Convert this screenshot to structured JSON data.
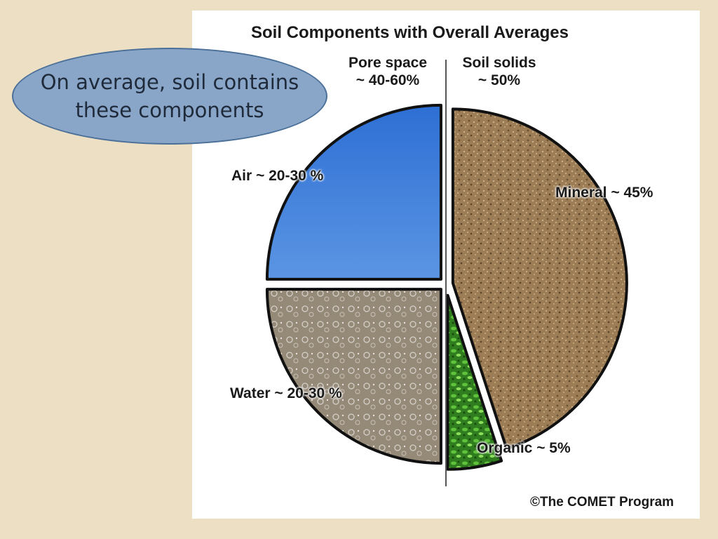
{
  "callout": {
    "text": "On average, soil contains these components"
  },
  "chart_data": {
    "type": "pie",
    "title": "Soil Components with Overall Averages",
    "groups": [
      {
        "name": "Pore space",
        "label": "~ 40-60%"
      },
      {
        "name": "Soil solids",
        "label": "~ 50%"
      }
    ],
    "slices": [
      {
        "name": "Air",
        "label": "Air ~ 20-30 %",
        "value": 25,
        "group": "Pore space",
        "color": "#3b7ad8"
      },
      {
        "name": "Water",
        "label": "Water ~ 20-30 %",
        "value": 25,
        "group": "Pore space",
        "color": "#9b8f82"
      },
      {
        "name": "Organic",
        "label": "Organic ~ 5%",
        "value": 5,
        "group": "Soil solids",
        "color": "#3e9a2a"
      },
      {
        "name": "Mineral",
        "label": "Mineral ~ 45%",
        "value": 45,
        "group": "Soil solids",
        "color": "#9c7d56"
      }
    ],
    "credit": "©The COMET Program"
  }
}
